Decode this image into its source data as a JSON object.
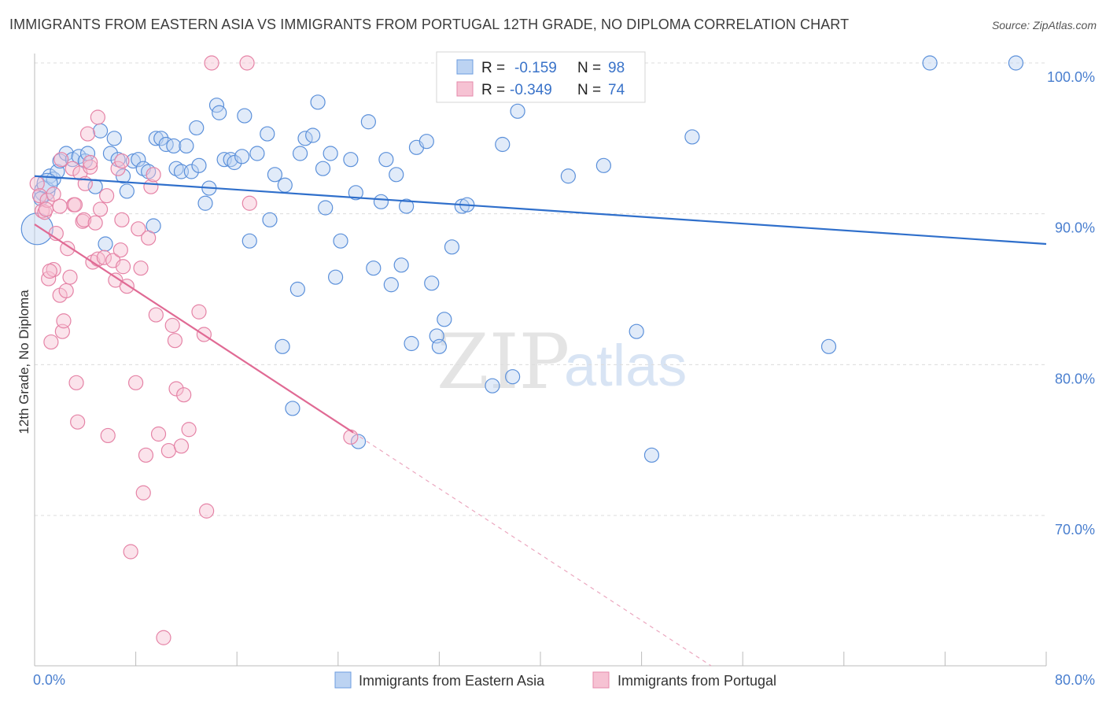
{
  "title": "IMMIGRANTS FROM EASTERN ASIA VS IMMIGRANTS FROM PORTUGAL 12TH GRADE, NO DIPLOMA CORRELATION CHART",
  "source": "Source: ZipAtlas.com",
  "watermark": {
    "zip": "ZIP",
    "atlas": "atlas"
  },
  "colors": {
    "blue": "#4a86d8",
    "blue_fill": "#bcd3f2",
    "pink": "#e26d98",
    "pink_fill": "#f6c2d3",
    "axis_text": "#4a7fcf",
    "grid": "#dddddd"
  },
  "chart_data": {
    "type": "scatter",
    "xlabel": "",
    "ylabel": "12th Grade, No Diploma",
    "xlim": [
      0,
      80
    ],
    "ylim": [
      60,
      102
    ],
    "x_tick_labels": [
      "0.0%",
      "80.0%"
    ],
    "y_ticks": [
      70,
      80,
      90,
      100
    ],
    "y_tick_labels": [
      "70.0%",
      "80.0%",
      "90.0%",
      "100.0%"
    ],
    "grid": true,
    "legend": {
      "placement": "top-center",
      "rows": [
        {
          "r_label": "R =",
          "r_value": "-0.159",
          "n_label": "N =",
          "n_value": "98"
        },
        {
          "r_label": "R =",
          "r_value": "-0.349",
          "n_label": "N =",
          "n_value": "74"
        }
      ]
    },
    "bottom_legend": [
      "Immigrants from Eastern Asia",
      "Immigrants from Portugal"
    ],
    "series": [
      {
        "name": "Immigrants from Eastern Asia",
        "color": "#4a86d8",
        "trend": {
          "x": [
            0,
            80
          ],
          "y": [
            92.5,
            88.0
          ],
          "dashed_to": null
        },
        "points": [
          [
            0.2,
            89.0
          ],
          [
            0.8,
            91.5
          ],
          [
            1.2,
            92.5
          ],
          [
            1.5,
            92.3
          ],
          [
            1.8,
            92.8
          ],
          [
            2.0,
            93.5
          ],
          [
            2.5,
            94.0
          ],
          [
            3.0,
            93.6
          ],
          [
            3.5,
            93.8
          ],
          [
            4.0,
            93.5
          ],
          [
            4.2,
            94.0
          ],
          [
            4.8,
            91.8
          ],
          [
            5.2,
            95.5
          ],
          [
            5.6,
            88.0
          ],
          [
            6.0,
            94.0
          ],
          [
            6.3,
            95.0
          ],
          [
            6.6,
            93.6
          ],
          [
            7.0,
            92.5
          ],
          [
            7.3,
            91.5
          ],
          [
            7.8,
            93.5
          ],
          [
            8.2,
            93.6
          ],
          [
            8.6,
            93.0
          ],
          [
            9.0,
            92.8
          ],
          [
            9.4,
            89.2
          ],
          [
            9.6,
            95.0
          ],
          [
            10.0,
            95.0
          ],
          [
            10.4,
            94.6
          ],
          [
            11.0,
            94.5
          ],
          [
            11.2,
            93.0
          ],
          [
            11.6,
            92.8
          ],
          [
            12.0,
            94.5
          ],
          [
            12.4,
            92.8
          ],
          [
            12.8,
            95.7
          ],
          [
            13.0,
            93.2
          ],
          [
            13.5,
            90.7
          ],
          [
            13.8,
            91.7
          ],
          [
            14.4,
            97.2
          ],
          [
            14.6,
            96.7
          ],
          [
            15.0,
            93.6
          ],
          [
            15.5,
            93.6
          ],
          [
            15.8,
            93.4
          ],
          [
            16.4,
            93.8
          ],
          [
            16.6,
            96.5
          ],
          [
            17.0,
            88.2
          ],
          [
            17.6,
            94.0
          ],
          [
            18.4,
            95.3
          ],
          [
            18.6,
            89.6
          ],
          [
            19.0,
            92.6
          ],
          [
            19.6,
            81.2
          ],
          [
            19.8,
            91.9
          ],
          [
            20.4,
            77.1
          ],
          [
            20.8,
            85.0
          ],
          [
            21.0,
            94.0
          ],
          [
            21.4,
            95.0
          ],
          [
            22.0,
            95.2
          ],
          [
            22.4,
            97.4
          ],
          [
            22.8,
            93.0
          ],
          [
            23.0,
            90.4
          ],
          [
            23.4,
            94.0
          ],
          [
            23.8,
            85.8
          ],
          [
            24.2,
            88.2
          ],
          [
            25.0,
            93.6
          ],
          [
            25.4,
            91.4
          ],
          [
            25.6,
            74.9
          ],
          [
            26.4,
            96.1
          ],
          [
            26.8,
            86.4
          ],
          [
            27.4,
            90.8
          ],
          [
            27.8,
            93.6
          ],
          [
            28.2,
            85.3
          ],
          [
            28.6,
            92.6
          ],
          [
            29.0,
            86.6
          ],
          [
            29.4,
            90.5
          ],
          [
            29.8,
            81.4
          ],
          [
            30.2,
            94.4
          ],
          [
            31.0,
            94.8
          ],
          [
            31.4,
            85.4
          ],
          [
            31.8,
            81.9
          ],
          [
            32.0,
            81.2
          ],
          [
            32.4,
            83.0
          ],
          [
            33.0,
            87.8
          ],
          [
            33.8,
            90.5
          ],
          [
            34.2,
            90.6
          ],
          [
            36.2,
            78.6
          ],
          [
            37.0,
            94.6
          ],
          [
            37.8,
            79.2
          ],
          [
            38.2,
            96.8
          ],
          [
            42.2,
            92.5
          ],
          [
            45.0,
            93.2
          ],
          [
            47.6,
            82.2
          ],
          [
            48.8,
            74.0
          ],
          [
            52.0,
            95.1
          ],
          [
            62.8,
            81.2
          ],
          [
            70.8,
            100.0
          ],
          [
            77.6,
            100.0
          ],
          [
            37.4,
            100.0
          ],
          [
            43.0,
            100.0
          ],
          [
            1.0,
            92.0
          ],
          [
            0.5,
            91.0
          ]
        ]
      },
      {
        "name": "Immigrants from Portugal",
        "color": "#e26d98",
        "trend": {
          "x": [
            0,
            25.2
          ],
          "y": [
            89.3,
            75.5
          ],
          "dashed_to": {
            "x": 53.5,
            "y": 60.0
          }
        },
        "points": [
          [
            0.2,
            92.0
          ],
          [
            0.4,
            91.2
          ],
          [
            0.6,
            90.2
          ],
          [
            0.8,
            90.1
          ],
          [
            1.0,
            90.9
          ],
          [
            1.1,
            85.7
          ],
          [
            1.3,
            81.5
          ],
          [
            1.5,
            86.3
          ],
          [
            1.7,
            88.7
          ],
          [
            2.0,
            84.6
          ],
          [
            2.2,
            82.2
          ],
          [
            2.3,
            82.9
          ],
          [
            2.5,
            84.9
          ],
          [
            2.6,
            87.7
          ],
          [
            2.8,
            85.8
          ],
          [
            3.0,
            93.0
          ],
          [
            3.1,
            90.6
          ],
          [
            3.3,
            78.8
          ],
          [
            3.4,
            76.2
          ],
          [
            3.6,
            92.7
          ],
          [
            3.8,
            89.5
          ],
          [
            3.9,
            89.6
          ],
          [
            4.0,
            92.0
          ],
          [
            4.2,
            95.3
          ],
          [
            4.4,
            93.1
          ],
          [
            4.6,
            86.8
          ],
          [
            4.8,
            89.4
          ],
          [
            5.0,
            87.0
          ],
          [
            5.0,
            96.4
          ],
          [
            5.2,
            90.3
          ],
          [
            5.5,
            87.1
          ],
          [
            5.7,
            91.2
          ],
          [
            5.8,
            75.3
          ],
          [
            6.2,
            86.9
          ],
          [
            6.4,
            85.6
          ],
          [
            6.6,
            93.0
          ],
          [
            6.8,
            87.6
          ],
          [
            6.9,
            89.6
          ],
          [
            7.0,
            86.5
          ],
          [
            7.3,
            85.2
          ],
          [
            7.6,
            67.6
          ],
          [
            8.0,
            78.8
          ],
          [
            8.2,
            89.0
          ],
          [
            8.4,
            86.4
          ],
          [
            8.6,
            71.5
          ],
          [
            8.8,
            74.0
          ],
          [
            9.0,
            88.4
          ],
          [
            9.2,
            91.8
          ],
          [
            9.4,
            92.6
          ],
          [
            9.6,
            83.3
          ],
          [
            9.8,
            75.4
          ],
          [
            10.2,
            61.9
          ],
          [
            10.6,
            74.3
          ],
          [
            10.9,
            82.6
          ],
          [
            11.1,
            81.6
          ],
          [
            11.2,
            78.4
          ],
          [
            11.6,
            74.6
          ],
          [
            11.8,
            78.0
          ],
          [
            12.2,
            75.7
          ],
          [
            13.0,
            83.5
          ],
          [
            13.4,
            82.0
          ],
          [
            13.6,
            70.3
          ],
          [
            14.0,
            100.0
          ],
          [
            16.8,
            100.0
          ],
          [
            17.0,
            90.7
          ],
          [
            25.0,
            75.2
          ],
          [
            0.9,
            90.3
          ],
          [
            1.5,
            91.3
          ],
          [
            2.0,
            90.5
          ],
          [
            3.2,
            90.6
          ],
          [
            1.2,
            86.2
          ],
          [
            4.4,
            93.4
          ],
          [
            2.1,
            93.6
          ],
          [
            6.9,
            93.5
          ]
        ]
      }
    ]
  }
}
